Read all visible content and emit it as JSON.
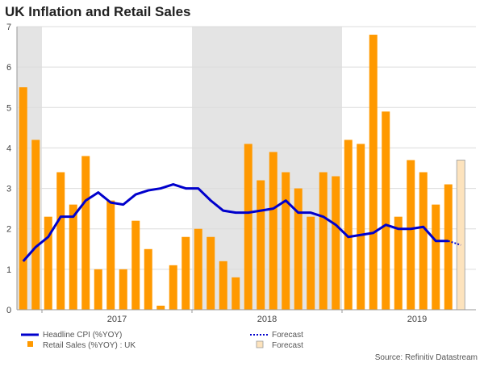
{
  "chart_data": {
    "type": "bar+line",
    "title": "UK Inflation and Retail Sales",
    "ylim": [
      0,
      7
    ],
    "yticks": [
      "0",
      "1",
      "2",
      "3",
      "4",
      "5",
      "6",
      "7"
    ],
    "xtick_labels": [
      "2017",
      "2018",
      "2019"
    ],
    "year_shading": "alternating grey bands by year",
    "grid": true,
    "months": [
      "2016-11",
      "2016-12",
      "2017-01",
      "2017-02",
      "2017-03",
      "2017-04",
      "2017-05",
      "2017-06",
      "2017-07",
      "2017-08",
      "2017-09",
      "2017-10",
      "2017-11",
      "2017-12",
      "2018-01",
      "2018-02",
      "2018-03",
      "2018-04",
      "2018-05",
      "2018-06",
      "2018-07",
      "2018-08",
      "2018-09",
      "2018-10",
      "2018-11",
      "2018-12",
      "2019-01",
      "2019-02",
      "2019-03",
      "2019-04",
      "2019-05",
      "2019-06",
      "2019-07",
      "2019-08",
      "2019-09",
      "2019-10"
    ],
    "series": [
      {
        "name": "Retail Sales (%YOY) : UK",
        "type": "bar",
        "color": "#ff9900",
        "values": [
          5.5,
          4.2,
          2.3,
          3.4,
          2.6,
          3.8,
          1.0,
          2.7,
          1.0,
          2.2,
          1.5,
          0.1,
          1.1,
          1.8,
          2.0,
          1.8,
          1.2,
          0.8,
          4.1,
          3.2,
          3.9,
          3.4,
          3.0,
          2.3,
          3.4,
          3.3,
          4.2,
          4.1,
          6.8,
          4.9,
          2.3,
          3.7,
          3.4,
          2.6,
          3.1,
          null
        ]
      },
      {
        "name": "Forecast",
        "type": "bar",
        "color": "#fde3bd",
        "values_index": 35,
        "value": 3.7
      },
      {
        "name": "Headline CPI (%YOY)",
        "type": "line",
        "color": "#0000cc",
        "values": [
          1.2,
          1.55,
          1.8,
          2.3,
          2.3,
          2.7,
          2.9,
          2.65,
          2.6,
          2.85,
          2.95,
          3.0,
          3.1,
          3.0,
          3.0,
          2.7,
          2.45,
          2.4,
          2.4,
          2.45,
          2.5,
          2.7,
          2.4,
          2.4,
          2.3,
          2.1,
          1.8,
          1.85,
          1.9,
          2.1,
          2.0,
          2.0,
          2.05,
          1.7,
          1.7,
          null
        ]
      },
      {
        "name": "Forecast",
        "type": "line-dotted",
        "color": "#0000cc",
        "values_index": 35,
        "value": 1.6
      }
    ],
    "legend": {
      "placement": "bottom",
      "cpi": "Headline CPI (%YOY)",
      "cpi_forecast": "Forecast",
      "retail": "Retail Sales (%YOY) : UK",
      "retail_forecast": "Forecast"
    },
    "source": "Source: Refinitiv Datastream"
  }
}
